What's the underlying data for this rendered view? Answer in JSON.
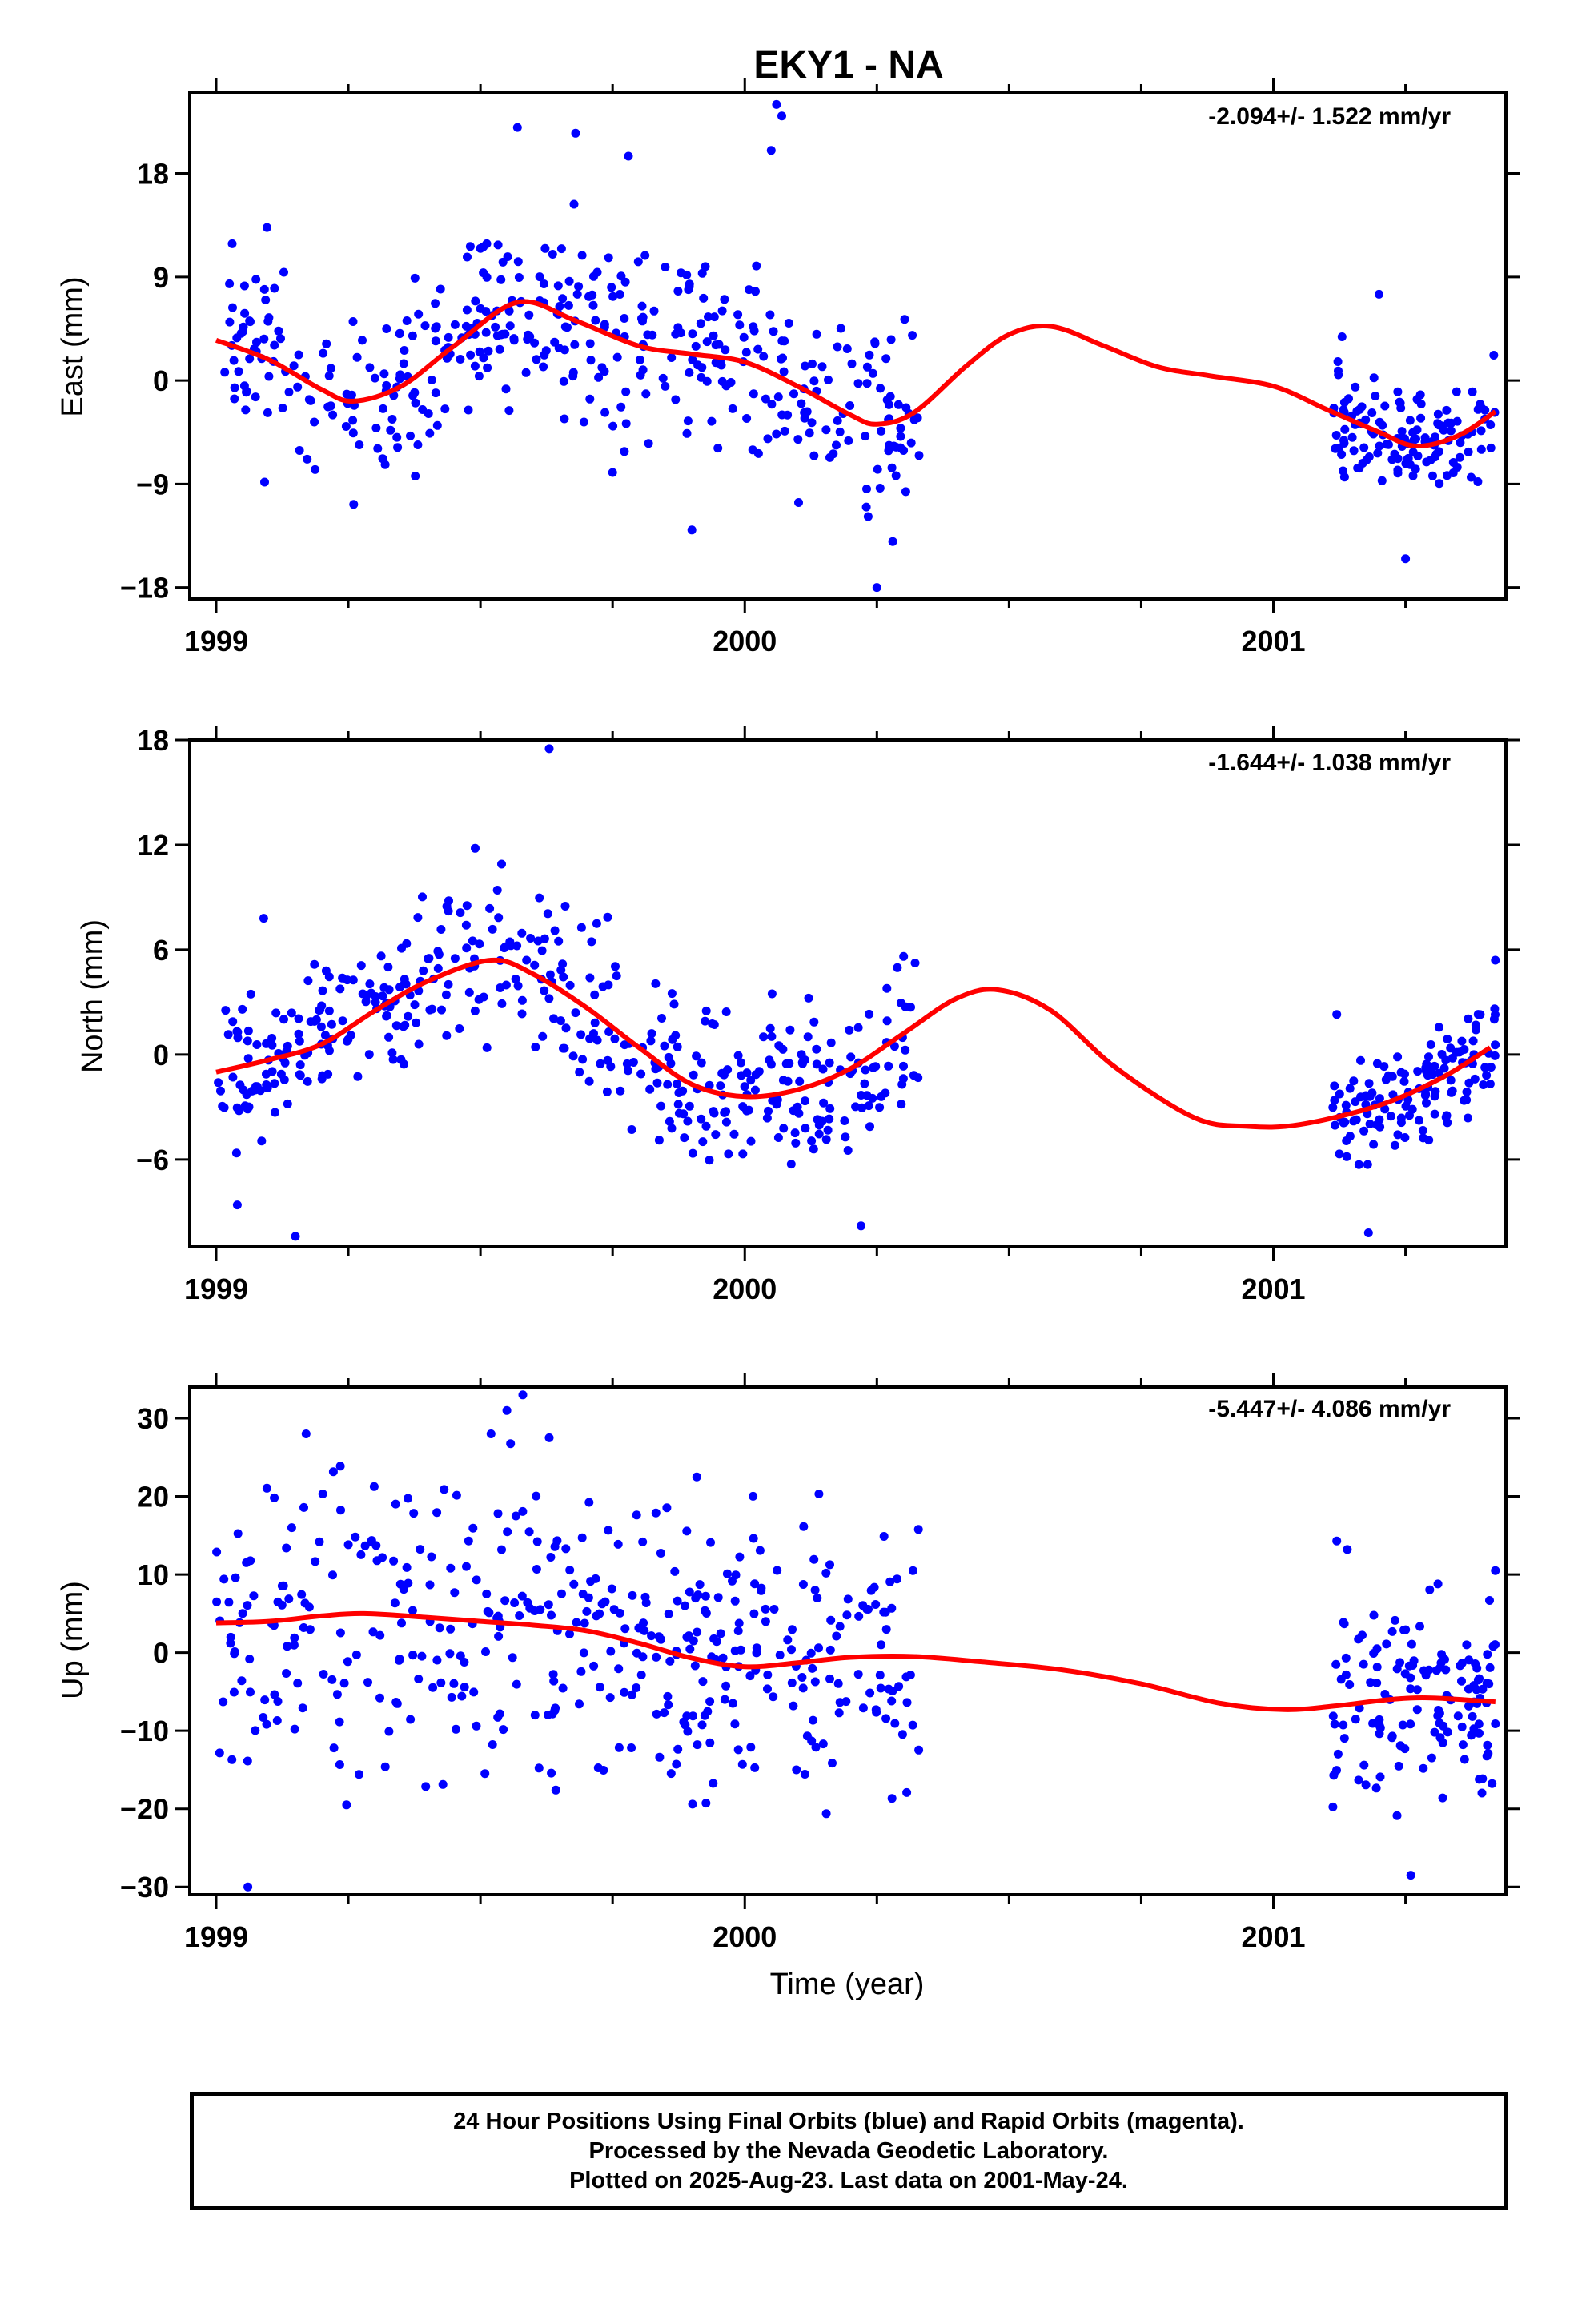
{
  "title": "EKY1 - NA",
  "xlabel": "Time (year)",
  "footer": {
    "line1": "24 Hour Positions Using Final Orbits (blue) and Rapid Orbits (magenta).",
    "line2": "Processed by the Nevada Geodetic Laboratory.",
    "line3": "Plotted on 2025-Aug-23. Last data on 2001-May-24."
  },
  "colors": {
    "points": "#0000ff",
    "fit": "#ff0000",
    "frame": "#000000"
  },
  "chart_data": [
    {
      "type": "scatter",
      "ylabel": "East (mm)",
      "rate_label": "-2.094+/- 1.522 mm/yr",
      "xlim": [
        1998.95,
        2001.44
      ],
      "ylim": [
        -19,
        25
      ],
      "x_ticks": [
        1999,
        2000,
        2001
      ],
      "x_tick_labels": [
        "1999",
        "2000",
        "2001"
      ],
      "y_ticks": [
        -18,
        -9,
        0,
        9,
        18
      ],
      "y_tick_labels": [
        "−18",
        "−9",
        "0",
        "9",
        "18"
      ],
      "grid": false,
      "fit_curve": [
        [
          1999.0,
          3.5
        ],
        [
          1999.1,
          1.8
        ],
        [
          1999.2,
          -0.8
        ],
        [
          1999.26,
          -1.8
        ],
        [
          1999.35,
          -0.5
        ],
        [
          1999.45,
          3.0
        ],
        [
          1999.57,
          6.8
        ],
        [
          1999.68,
          5.2
        ],
        [
          1999.8,
          3.0
        ],
        [
          1999.9,
          2.3
        ],
        [
          2000.0,
          1.6
        ],
        [
          2000.1,
          -0.5
        ],
        [
          2000.2,
          -3.0
        ],
        [
          2000.25,
          -3.8
        ],
        [
          2000.32,
          -2.8
        ],
        [
          2000.42,
          1.3
        ],
        [
          2000.5,
          4.0
        ],
        [
          2000.58,
          4.7
        ],
        [
          2000.68,
          3.0
        ],
        [
          2000.78,
          1.2
        ],
        [
          2000.88,
          0.4
        ],
        [
          2001.0,
          -0.5
        ],
        [
          2001.1,
          -2.5
        ],
        [
          2001.2,
          -4.5
        ],
        [
          2001.27,
          -5.7
        ],
        [
          2001.35,
          -4.8
        ],
        [
          2001.42,
          -2.7
        ]
      ],
      "segments": [
        {
          "x0": 1999.0,
          "x1": 2000.33,
          "n": 420,
          "seed": 11,
          "spread": 4.0,
          "outliers": [
            [
              1999.57,
              22
            ],
            [
              1999.68,
              21.5
            ],
            [
              1999.78,
              19.5
            ],
            [
              2000.05,
              20
            ],
            [
              2000.06,
              24
            ],
            [
              2000.07,
              23
            ],
            [
              1999.9,
              -13
            ],
            [
              2000.28,
              -14
            ],
            [
              2000.23,
              -11
            ],
            [
              1999.75,
              -8
            ],
            [
              2000.25,
              -18
            ]
          ]
        },
        {
          "x0": 2001.11,
          "x1": 2001.42,
          "n": 130,
          "seed": 23,
          "spread": 2.3,
          "outliers": [
            [
              2001.2,
              7.5
            ],
            [
              2001.25,
              -15.5
            ],
            [
              2001.13,
              3.8
            ]
          ]
        }
      ]
    },
    {
      "type": "scatter",
      "ylabel": "North (mm)",
      "rate_label": "-1.644+/- 1.038 mm/yr",
      "xlim": [
        1998.95,
        2001.44
      ],
      "ylim": [
        -11,
        18
      ],
      "x_ticks": [
        1999,
        2000,
        2001
      ],
      "x_tick_labels": [
        "1999",
        "2000",
        "2001"
      ],
      "y_ticks": [
        -6,
        0,
        6,
        12,
        18
      ],
      "y_tick_labels": [
        "−6",
        "0",
        "6",
        "12",
        "18"
      ],
      "grid": false,
      "fit_curve": [
        [
          1999.0,
          -1.0
        ],
        [
          1999.1,
          -0.3
        ],
        [
          1999.2,
          0.6
        ],
        [
          1999.3,
          2.5
        ],
        [
          1999.4,
          4.2
        ],
        [
          1999.52,
          5.4
        ],
        [
          1999.6,
          4.6
        ],
        [
          1999.7,
          2.7
        ],
        [
          1999.8,
          0.4
        ],
        [
          1999.9,
          -1.7
        ],
        [
          2000.0,
          -2.4
        ],
        [
          2000.1,
          -2.0
        ],
        [
          2000.2,
          -0.8
        ],
        [
          2000.3,
          1.2
        ],
        [
          2000.4,
          3.2
        ],
        [
          2000.48,
          3.7
        ],
        [
          2000.58,
          2.5
        ],
        [
          2000.7,
          -0.7
        ],
        [
          2000.85,
          -3.6
        ],
        [
          2000.95,
          -4.1
        ],
        [
          2001.05,
          -4.0
        ],
        [
          2001.2,
          -2.9
        ],
        [
          2001.32,
          -1.3
        ],
        [
          2001.41,
          0.4
        ]
      ],
      "segments": [
        {
          "x0": 1999.0,
          "x1": 2000.33,
          "n": 420,
          "seed": 37,
          "spread": 2.2,
          "outliers": [
            [
              1999.63,
              17.5
            ],
            [
              1999.49,
              11.8
            ],
            [
              1999.54,
              10.9
            ],
            [
              1999.15,
              -10.4
            ],
            [
              1999.04,
              -8.6
            ],
            [
              2000.22,
              -9.8
            ],
            [
              1999.72,
              7.5
            ],
            [
              1999.09,
              7.8
            ]
          ]
        },
        {
          "x0": 2001.11,
          "x1": 2001.42,
          "n": 130,
          "seed": 53,
          "spread": 1.6,
          "outliers": [
            [
              2001.18,
              -10.2
            ],
            [
              2001.42,
              5.4
            ],
            [
              2001.12,
              2.3
            ]
          ]
        }
      ]
    },
    {
      "type": "scatter",
      "ylabel": "Up (mm)",
      "rate_label": "-5.447+/- 4.086 mm/yr",
      "xlim": [
        1998.95,
        2001.44
      ],
      "ylim": [
        -31,
        34
      ],
      "x_ticks": [
        1999,
        2000,
        2001
      ],
      "x_tick_labels": [
        "1999",
        "2000",
        "2001"
      ],
      "y_ticks": [
        -30,
        -20,
        -10,
        0,
        10,
        20,
        30
      ],
      "y_tick_labels": [
        "−30",
        "−20",
        "−10",
        "0",
        "10",
        "20",
        "30"
      ],
      "grid": false,
      "fit_curve": [
        [
          1999.0,
          3.8
        ],
        [
          1999.1,
          4.0
        ],
        [
          1999.2,
          4.7
        ],
        [
          1999.28,
          5.0
        ],
        [
          1999.4,
          4.5
        ],
        [
          1999.5,
          4.0
        ],
        [
          1999.6,
          3.5
        ],
        [
          1999.7,
          2.8
        ],
        [
          1999.8,
          1.2
        ],
        [
          1999.9,
          -0.7
        ],
        [
          2000.0,
          -1.8
        ],
        [
          2000.1,
          -1.3
        ],
        [
          2000.2,
          -0.6
        ],
        [
          2000.32,
          -0.5
        ],
        [
          2000.45,
          -1.2
        ],
        [
          2000.6,
          -2.2
        ],
        [
          2000.75,
          -4.0
        ],
        [
          2000.9,
          -6.5
        ],
        [
          2001.02,
          -7.3
        ],
        [
          2001.12,
          -6.8
        ],
        [
          2001.22,
          -6.0
        ],
        [
          2001.3,
          -5.8
        ],
        [
          2001.42,
          -6.3
        ]
      ],
      "segments": [
        {
          "x0": 1999.0,
          "x1": 2000.33,
          "n": 420,
          "seed": 71,
          "spread": 9.0,
          "outliers": [
            [
              1999.58,
              33
            ],
            [
              1999.55,
              31
            ],
            [
              1999.06,
              -30
            ],
            [
              1999.52,
              28
            ],
            [
              1999.17,
              28
            ],
            [
              1999.63,
              27.5
            ]
          ]
        },
        {
          "x0": 2001.11,
          "x1": 2001.42,
          "n": 130,
          "seed": 97,
          "spread": 6.0,
          "outliers": [
            [
              2001.26,
              -28.5
            ],
            [
              2001.12,
              14.3
            ],
            [
              2001.14,
              13.2
            ],
            [
              2001.42,
              10.5
            ]
          ]
        }
      ]
    }
  ]
}
